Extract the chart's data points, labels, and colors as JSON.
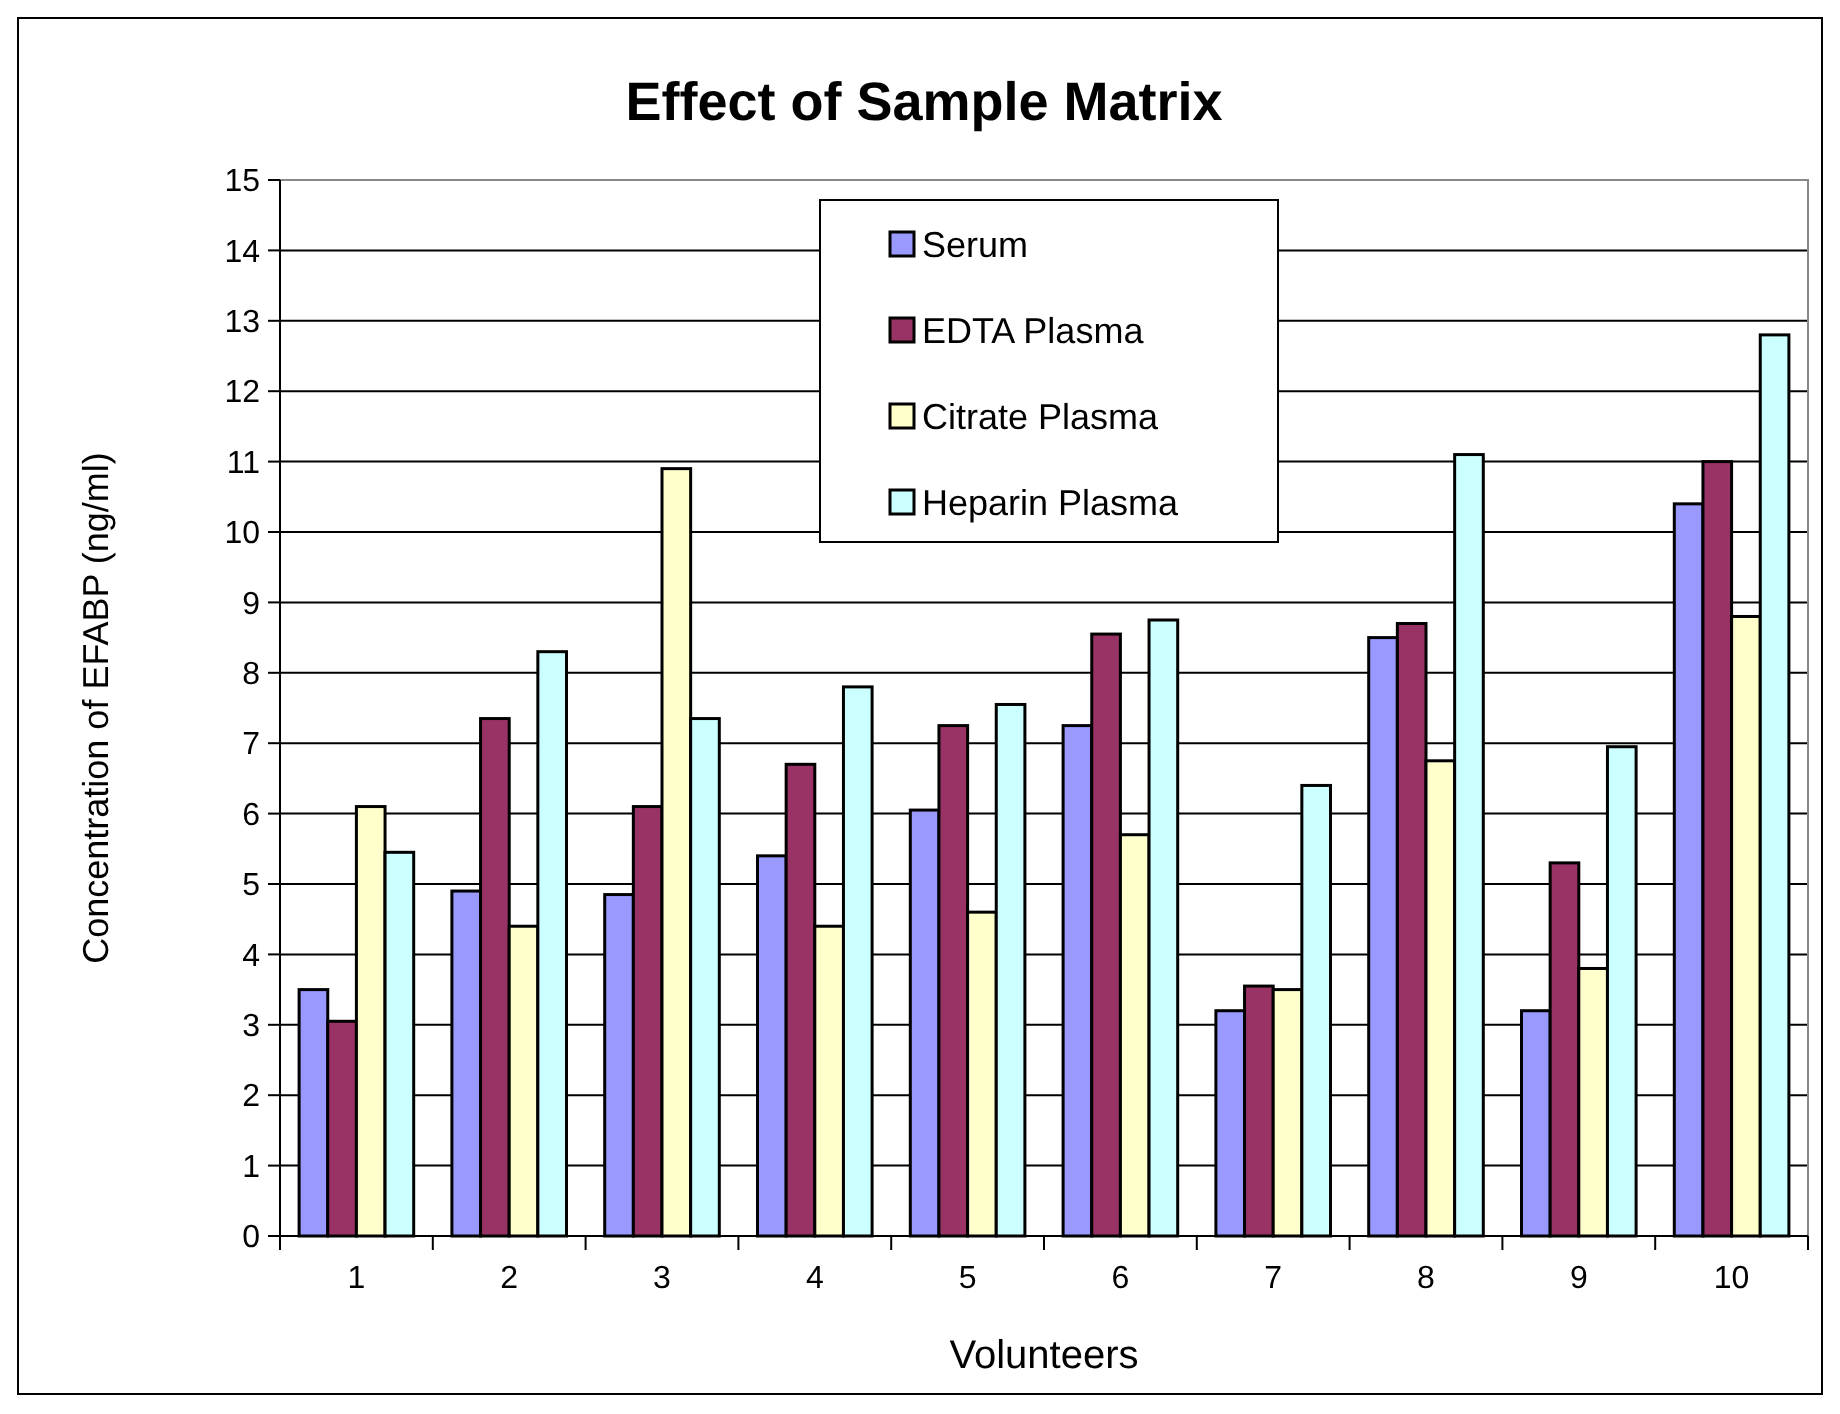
{
  "chart_data": {
    "type": "bar",
    "title": "Effect of Sample Matrix",
    "xlabel": "Volunteers",
    "ylabel": "Concentration of EFABP  (ng/ml)",
    "categories": [
      "1",
      "2",
      "3",
      "4",
      "5",
      "6",
      "7",
      "8",
      "9",
      "10"
    ],
    "series": [
      {
        "name": "Serum",
        "color": "#9999ff",
        "values": [
          3.5,
          4.9,
          4.85,
          5.4,
          6.05,
          7.25,
          3.2,
          8.5,
          3.2,
          10.4
        ]
      },
      {
        "name": "EDTA Plasma",
        "color": "#993366",
        "values": [
          3.05,
          7.35,
          6.1,
          6.7,
          7.25,
          8.55,
          3.55,
          8.7,
          5.3,
          11.0
        ]
      },
      {
        "name": "Citrate Plasma",
        "color": "#ffffcc",
        "values": [
          6.1,
          4.4,
          10.9,
          4.4,
          4.6,
          5.7,
          3.5,
          6.75,
          3.8,
          8.8
        ]
      },
      {
        "name": "Heparin Plasma",
        "color": "#ccffff",
        "values": [
          5.45,
          8.3,
          7.35,
          7.8,
          7.55,
          8.75,
          6.4,
          11.1,
          6.95,
          12.8
        ]
      }
    ],
    "ylim": [
      0,
      15
    ],
    "yticks": [
      0,
      1,
      2,
      3,
      4,
      5,
      6,
      7,
      8,
      9,
      10,
      11,
      12,
      13,
      14,
      15
    ],
    "grid": "y",
    "legend": "top"
  }
}
